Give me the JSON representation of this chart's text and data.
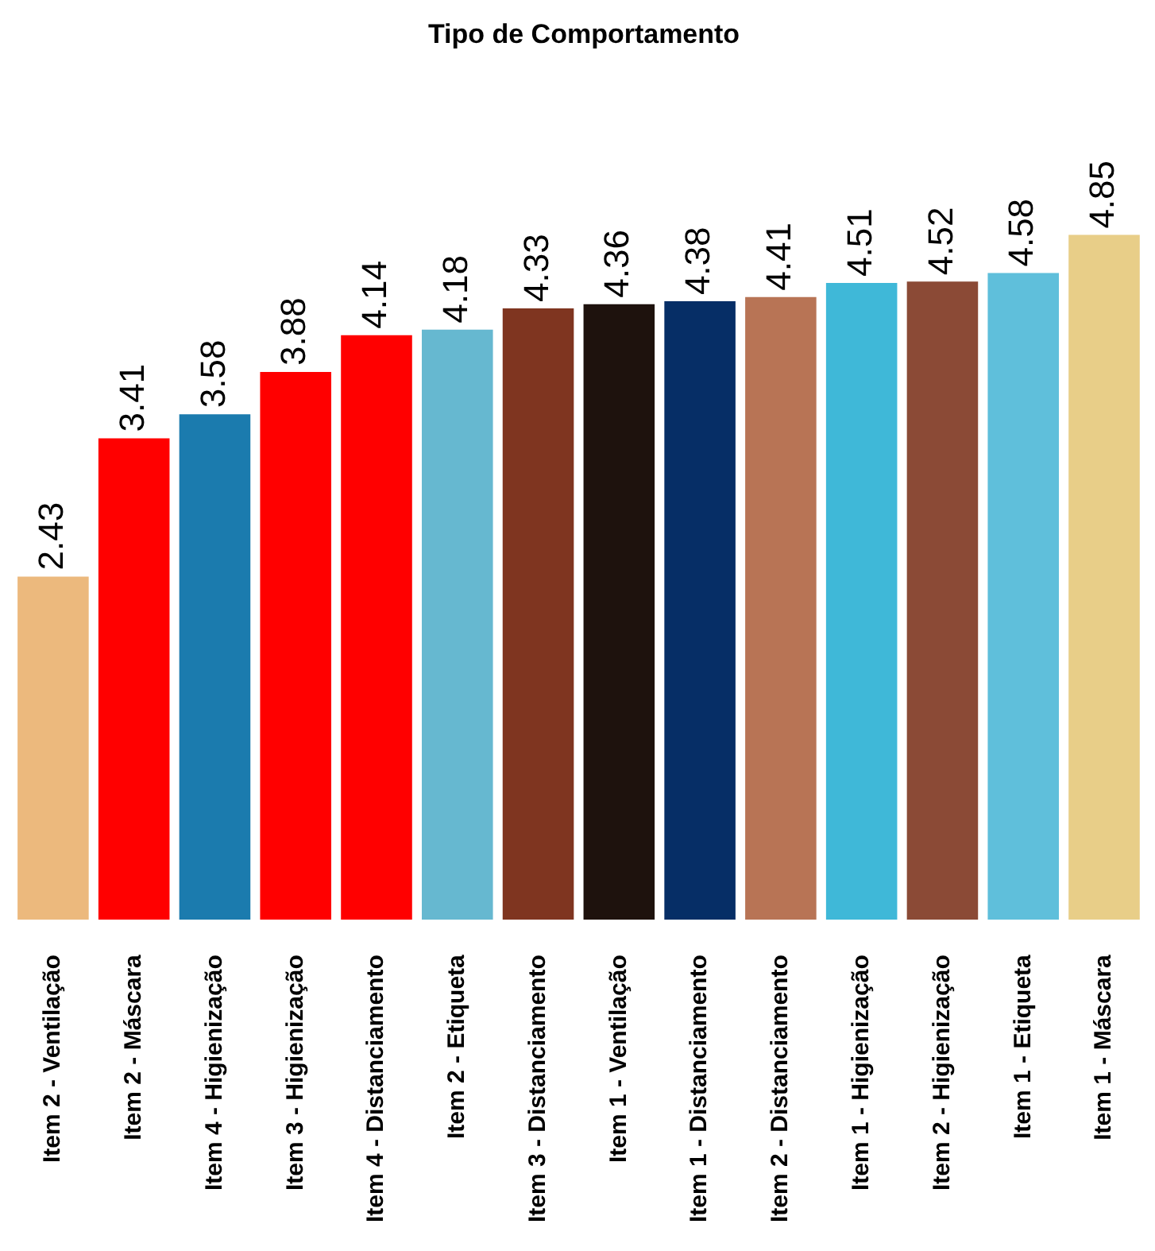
{
  "chart_data": {
    "type": "bar",
    "title": "Tipo de Comportamento",
    "categories": [
      "Item 2 - Ventilação",
      "Item 2 - Máscara",
      "Item 4 - Higienização",
      "Item 3 - Higienização",
      "Item 4 - Distanciamento",
      "Item 2 - Etiqueta",
      "Item 3 - Distanciamento",
      "Item 1 - Ventilação",
      "Item 1 - Distanciamento",
      "Item 2 - Distanciamento",
      "Item 1 - Higienização",
      "Item 2 - Higienização",
      "Item 1 - Etiqueta",
      "Item 1 - Máscara"
    ],
    "values": [
      2.43,
      3.41,
      3.58,
      3.88,
      4.14,
      4.18,
      4.33,
      4.36,
      4.38,
      4.41,
      4.51,
      4.52,
      4.58,
      4.85
    ],
    "colors": [
      "#ecb97d",
      "#ff0000",
      "#1b7bae",
      "#ff0000",
      "#ff0000",
      "#66b8d0",
      "#7f3520",
      "#1e120d",
      "#062e66",
      "#b87455",
      "#3fb8d8",
      "#8b4a36",
      "#5fbfdb",
      "#e8ce88"
    ],
    "data_labels": true
  }
}
